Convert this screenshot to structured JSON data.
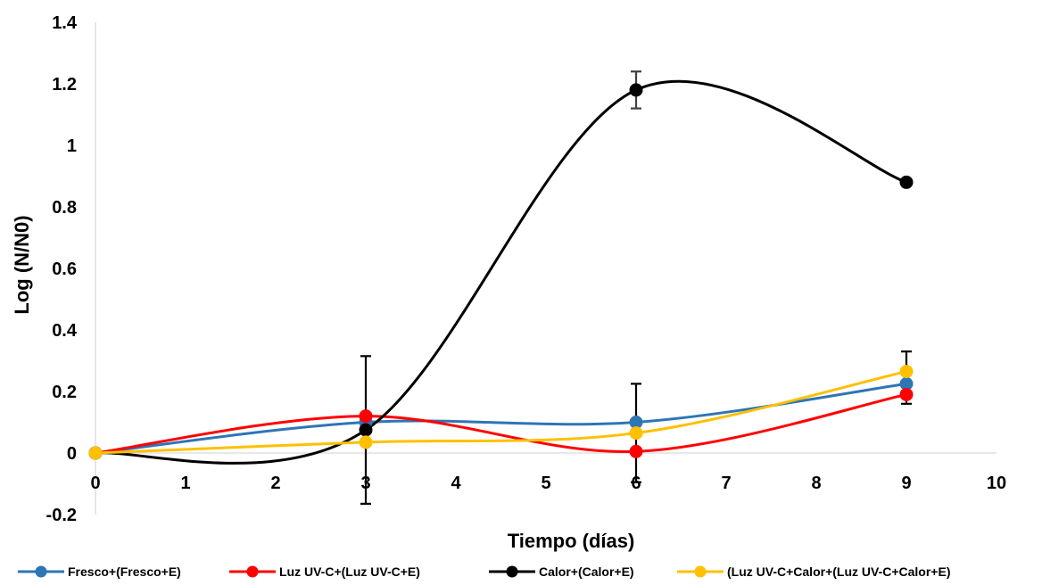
{
  "chart_data": {
    "type": "line",
    "title": "",
    "xlabel": "Tiempo (días)",
    "ylabel": "Log (N/N0)",
    "xlim": [
      0,
      10
    ],
    "ylim": [
      -0.2,
      1.4
    ],
    "xticks": [
      "0",
      "1",
      "2",
      "3",
      "4",
      "5",
      "6",
      "7",
      "8",
      "9",
      "10"
    ],
    "yticks": [
      "-0.2",
      "0",
      "0.2",
      "0.4",
      "0.6",
      "0.8",
      "1",
      "1.2",
      "1.4"
    ],
    "grid": false,
    "legend_position": "bottom",
    "series": [
      {
        "name": "Fresco+(Fresco+E)",
        "color": "#2E75B6",
        "smooth": true,
        "x": [
          0,
          3,
          6,
          9
        ],
        "y": [
          0,
          0.1,
          0.1,
          0.225
        ],
        "error": [
          null,
          null,
          null,
          null
        ]
      },
      {
        "name": "Luz UV-C+(Luz UV-C+E)",
        "color": "#FF0000",
        "smooth": true,
        "x": [
          0,
          3,
          6,
          9
        ],
        "y": [
          0,
          0.12,
          0.005,
          0.19
        ],
        "error": [
          null,
          null,
          null,
          0.03
        ]
      },
      {
        "name": "Calor+(Calor+E)",
        "color": "#000000",
        "smooth": true,
        "x": [
          0,
          3,
          6,
          9
        ],
        "y": [
          0,
          0.075,
          1.18,
          0.88
        ],
        "error": [
          null,
          0.24,
          0.06,
          null
        ]
      },
      {
        "name": "(Luz UV-C+Calor+(Luz UV-C+Calor+E)",
        "color": "#FFC000",
        "smooth": true,
        "x": [
          0,
          3,
          6,
          9
        ],
        "y": [
          0,
          0.035,
          0.065,
          0.265
        ],
        "error": [
          null,
          null,
          0.16,
          0.065
        ]
      }
    ]
  }
}
